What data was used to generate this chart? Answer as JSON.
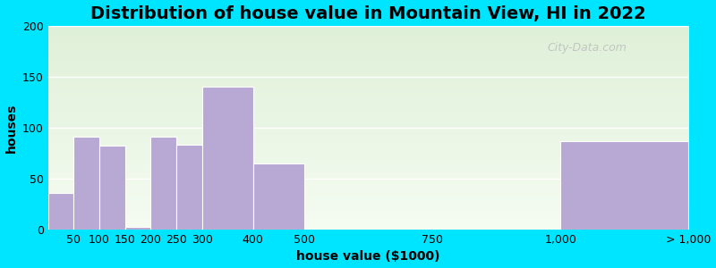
{
  "title": "Distribution of house value in Mountain View, HI in 2022",
  "xlabel": "house value ($1000)",
  "ylabel": "houses",
  "bar_edges": [
    0,
    50,
    100,
    150,
    200,
    250,
    300,
    400,
    500,
    750,
    1000,
    1250
  ],
  "bar_heights": [
    36,
    91,
    82,
    3,
    91,
    83,
    140,
    65,
    0,
    0,
    87
  ],
  "xtick_positions": [
    50,
    100,
    150,
    200,
    250,
    300,
    400,
    500,
    750,
    1000,
    1250
  ],
  "xtick_labels": [
    "50",
    "100",
    "150",
    "200",
    "250",
    "300",
    "400",
    "500",
    "750",
    "1,000",
    "> 1,000"
  ],
  "bar_color": "#b8a8d4",
  "bar_edgecolor": "#ffffff",
  "ylim": [
    0,
    200
  ],
  "yticks": [
    0,
    50,
    100,
    150,
    200
  ],
  "background_outer": "#00e5ff",
  "background_inner_top": "#dff0d8",
  "background_inner_bottom": "#f5fcf2",
  "title_fontsize": 14,
  "axis_fontsize": 10,
  "tick_fontsize": 9,
  "watermark": "City-Data.com"
}
